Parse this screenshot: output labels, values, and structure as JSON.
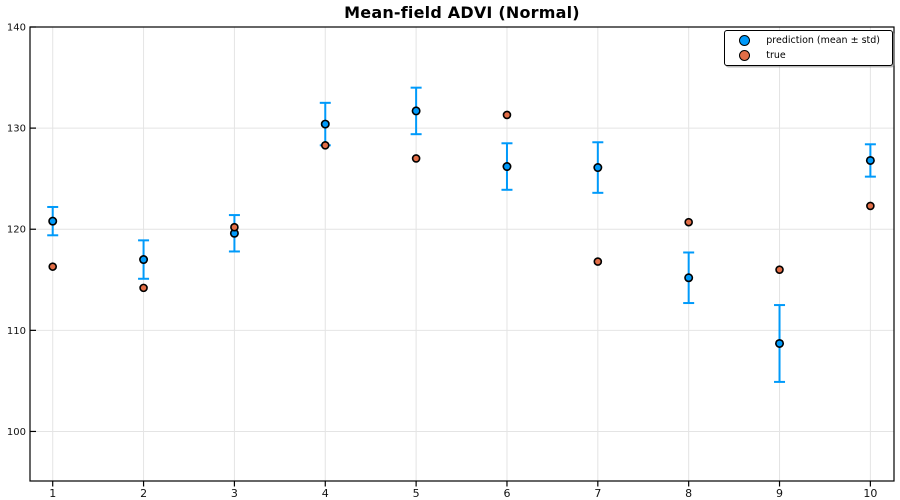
{
  "chart_data": {
    "type": "scatter",
    "title": "Mean-field ADVI (Normal)",
    "xlabel": "",
    "ylabel": "",
    "x": [
      1,
      2,
      3,
      4,
      5,
      6,
      7,
      8,
      9,
      10
    ],
    "series": [
      {
        "name": "prediction (mean ± std)",
        "marker_color": "#009AFA",
        "errorbar_color": "#009AFA",
        "values": [
          120.8,
          117.0,
          119.6,
          130.4,
          131.7,
          126.2,
          126.1,
          115.2,
          108.7,
          126.8
        ],
        "std": [
          1.4,
          1.9,
          1.8,
          2.1,
          2.3,
          2.3,
          2.5,
          2.5,
          3.8,
          1.6
        ]
      },
      {
        "name": "true",
        "marker_color": "#E26E47",
        "values": [
          116.3,
          114.2,
          120.2,
          128.3,
          127.0,
          131.3,
          116.8,
          120.7,
          116.0,
          122.3
        ]
      }
    ],
    "xticks": [
      1,
      2,
      3,
      4,
      5,
      6,
      7,
      8,
      9,
      10
    ],
    "yticks": [
      100,
      110,
      120,
      130,
      140
    ],
    "xlim": [
      0.75,
      10.26
    ],
    "ylim": [
      95.1,
      140.0
    ],
    "grid": true,
    "legend_position": "top-right",
    "colors": {
      "frame": "#000000",
      "grid": "#E4E4E4",
      "tick_label": "#111111",
      "marker_stroke": "#000000",
      "background": "#FFFFFF"
    }
  }
}
